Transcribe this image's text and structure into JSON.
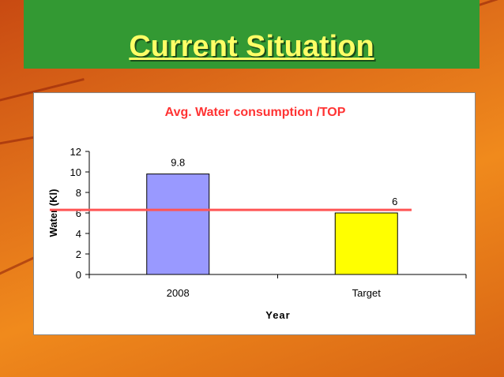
{
  "slide": {
    "title": "Current Situation"
  },
  "chart_data": {
    "type": "bar",
    "title": "Avg. Water consumption /TOP",
    "categories": [
      "2008",
      "Target"
    ],
    "values": [
      9.8,
      6
    ],
    "data_labels": [
      "9.8",
      "6"
    ],
    "xlabel": "Year",
    "ylabel": "Water (Kl)",
    "ylim": [
      0,
      12
    ],
    "yticks": [
      0,
      2,
      4,
      6,
      8,
      10,
      12
    ],
    "reference_line": 6.3,
    "grid": false,
    "legend": "none",
    "bar_colors": [
      "#9999ff",
      "#ffff00"
    ],
    "title_color": "#ff3333",
    "reference_line_color": "#ff5555"
  }
}
